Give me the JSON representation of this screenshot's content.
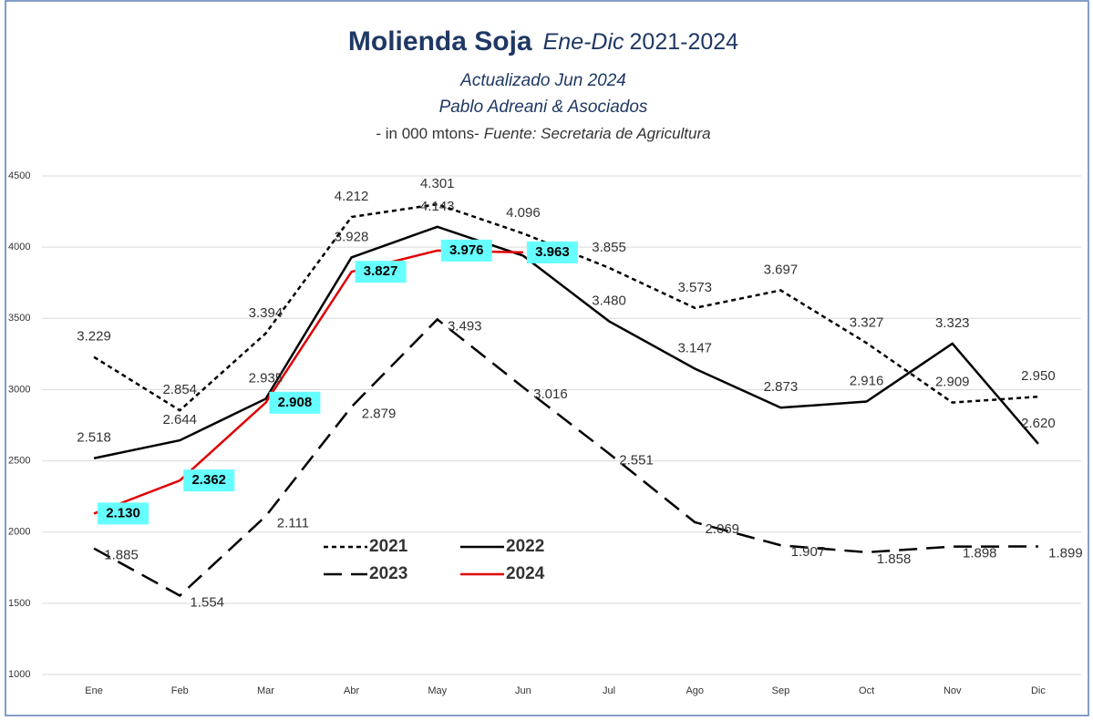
{
  "chart_data": {
    "type": "line",
    "title": "Molienda  Soja",
    "title_period": "Ene-Dic",
    "title_years": "2021-2024",
    "subtitle": "Actualizado Jun 2024",
    "author": "Pablo Adreani & Asociados",
    "units": "- in  000 mtons-",
    "source": "Fuente: Secretaria de Agricultura",
    "categories": [
      "Ene",
      "Feb",
      "Mar",
      "Abr",
      "May",
      "Jun",
      "Jul",
      "Ago",
      "Sep",
      "Oct",
      "Nov",
      "Dic"
    ],
    "ylim": [
      1000,
      4500
    ],
    "yticks": [
      1000,
      1500,
      2000,
      2500,
      3000,
      3500,
      4000,
      4500
    ],
    "grid": true,
    "series": [
      {
        "name": "2021",
        "color": "#000000",
        "dash": "5,4",
        "values": [
          3229,
          2854,
          3394,
          4212,
          4301,
          4096,
          3855,
          3573,
          3697,
          3327,
          2909,
          2950
        ],
        "value_labels": [
          "3.229",
          "2.854",
          "3.394",
          "4.212",
          "4.301",
          "4.096",
          "3.855",
          "3.573",
          "3.697",
          "3.327",
          "2.909",
          "2.950"
        ]
      },
      {
        "name": "2022",
        "color": "#000000",
        "dash": "none",
        "values": [
          2518,
          2644,
          2935,
          3928,
          4143,
          3940,
          3480,
          3147,
          2873,
          2916,
          3323,
          2620
        ],
        "value_labels": [
          "2.518",
          "2.644",
          "2.935",
          "3.928",
          "4.143",
          null,
          "3.480",
          "3.147",
          "2.873",
          "2.916",
          "3.323",
          "2.620"
        ]
      },
      {
        "name": "2023",
        "color": "#000000",
        "dash": "20,10",
        "values": [
          1885,
          1554,
          2111,
          2879,
          3493,
          3016,
          2551,
          2069,
          1907,
          1858,
          1898,
          1899
        ],
        "value_labels": [
          "1.885",
          "1.554",
          "2.111",
          "2.879",
          "3.493",
          "3.016",
          "2.551",
          "2.069",
          "1.907",
          "1.858",
          "1.898",
          "1.899"
        ]
      },
      {
        "name": "2024",
        "color": "#e00000",
        "dash": "none",
        "label_background": "#66ffff",
        "values": [
          2130,
          2362,
          2908,
          3827,
          3976,
          3963,
          null,
          null,
          null,
          null,
          null,
          null
        ],
        "value_labels": [
          "2.130",
          "2.362",
          "2.908",
          "3.827",
          "3.976",
          "3.963",
          null,
          null,
          null,
          null,
          null,
          null
        ]
      }
    ]
  }
}
